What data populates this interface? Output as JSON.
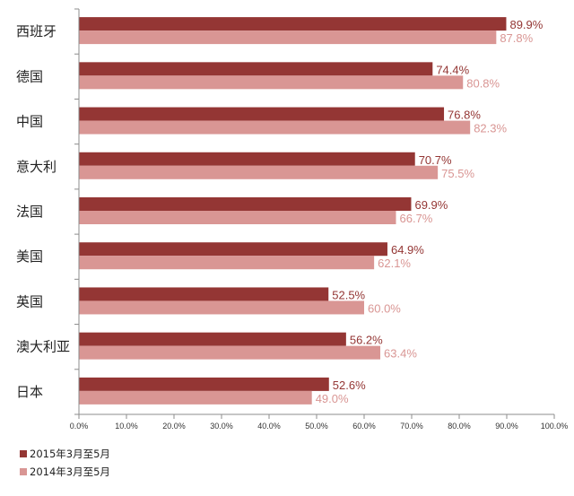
{
  "chart_data": {
    "type": "bar",
    "orientation": "horizontal",
    "categories": [
      "西班牙",
      "德国",
      "中国",
      "意大利",
      "法国",
      "美国",
      "英国",
      "澳大利亚",
      "日本"
    ],
    "series": [
      {
        "name": "2015年3月至5月",
        "color": "#943634",
        "values": [
          89.9,
          74.4,
          76.8,
          70.7,
          69.9,
          64.9,
          52.5,
          56.2,
          52.6
        ],
        "labels": [
          "89.9%",
          "74.4%",
          "76.8%",
          "70.7%",
          "69.9%",
          "64.9%",
          "52.5%",
          "56.2%",
          "52.6%"
        ]
      },
      {
        "name": "2014年3月至5月",
        "color": "#d99694",
        "values": [
          87.8,
          80.8,
          82.3,
          75.5,
          66.7,
          62.1,
          60.0,
          63.4,
          49.0
        ],
        "labels": [
          "87.8%",
          "80.8%",
          "82.3%",
          "75.5%",
          "66.7%",
          "62.1%",
          "60.0%",
          "63.4%",
          "49.0%"
        ]
      }
    ],
    "xlim": [
      0,
      100
    ],
    "xticks": [
      0,
      10,
      20,
      30,
      40,
      50,
      60,
      70,
      80,
      90,
      100
    ],
    "xtick_labels": [
      "0.0%",
      "10.0%",
      "20.0%",
      "30.0%",
      "40.0%",
      "50.0%",
      "60.0%",
      "70.0%",
      "80.0%",
      "90.0%",
      "100.0%"
    ],
    "grid": false,
    "legend_position": "bottom-left",
    "title": "",
    "xlabel": "",
    "ylabel": ""
  }
}
